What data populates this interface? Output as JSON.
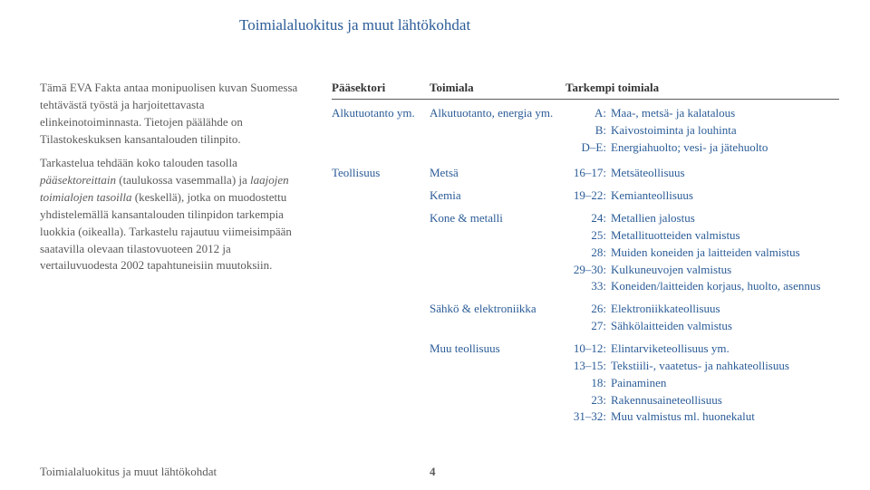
{
  "title": "Toimialaluokitus ja muut lähtökohdat",
  "left": {
    "p1": "Tämä EVA Fakta antaa monipuolisen kuvan Suomessa tehtävästä työstä ja harjoitettavasta elinkeinotoiminnasta. Tietojen päälähde on Tilastokeskuksen kansantalouden tilinpito.",
    "p2a": "Tarkastelua tehdään koko talouden tasolla ",
    "p2b_i": "pääsektoreittain",
    "p2c": " (taulukossa vasemmalla) ja ",
    "p2d_i": "laajojen toimialojen tasoilla",
    "p2e": " (keskellä), jotka on muodostettu yhdistelemällä kansantalouden tilinpidon tarkempia luokkia (oikealla). Tarkastelu rajautuu viimeisimpään saatavilla olevaan tilastovuoteen 2012 ja vertailuvuodesta 2002 tapahtuneisiin muutoksiin."
  },
  "headers": {
    "c1": "Pääsektori",
    "c2": "Toimiala",
    "c3": "Tarkempi toimiala"
  },
  "rows": [
    {
      "sector": "Alkutuotanto ym.",
      "branch": "Alkutuotanto, energia ym.",
      "details": [
        {
          "pref": "A:",
          "txt": "Maa-, metsä- ja kalatalous"
        },
        {
          "pref": "B:",
          "txt": "Kaivostoiminta ja louhinta"
        },
        {
          "pref": "D–E:",
          "txt": "Energiahuolto; vesi- ja jätehuolto"
        }
      ]
    },
    {
      "sector": "Teollisuus",
      "branch": "Metsä",
      "details": [
        {
          "pref": "16–17:",
          "txt": "Metsäteollisuus"
        }
      ]
    },
    {
      "sector": "",
      "branch": "Kemia",
      "details": [
        {
          "pref": "19–22:",
          "txt": "Kemianteollisuus"
        }
      ]
    },
    {
      "sector": "",
      "branch": "Kone & metalli",
      "details": [
        {
          "pref": "24:",
          "txt": "Metallien jalostus"
        },
        {
          "pref": "25:",
          "txt": "Metallituotteiden valmistus"
        },
        {
          "pref": "28:",
          "txt": "Muiden koneiden ja laitteiden valmistus"
        },
        {
          "pref": "29–30:",
          "txt": "Kulkuneuvojen valmistus"
        },
        {
          "pref": "33:",
          "txt": "Koneiden/laitteiden korjaus, huolto, asennus"
        }
      ]
    },
    {
      "sector": "",
      "branch": "Sähkö & elektroniikka",
      "details": [
        {
          "pref": "26:",
          "txt": "Elektroniikkateollisuus"
        },
        {
          "pref": "27:",
          "txt": "Sähkölaitteiden valmistus"
        }
      ]
    },
    {
      "sector": "",
      "branch": "Muu teollisuus",
      "details": [
        {
          "pref": "10–12:",
          "txt": "Elintarviketeollisuus ym."
        },
        {
          "pref": "13–15:",
          "txt": "Tekstiili-, vaatetus- ja nahkateollisuus"
        },
        {
          "pref": "18:",
          "txt": "Painaminen"
        },
        {
          "pref": "23:",
          "txt": "Rakennusaineteollisuus"
        },
        {
          "pref": "31–32:",
          "txt": "Muu valmistus ml. huonekalut"
        }
      ]
    }
  ],
  "footer": {
    "title": "Toimialaluokitus ja muut lähtökohdat",
    "page": "4"
  }
}
